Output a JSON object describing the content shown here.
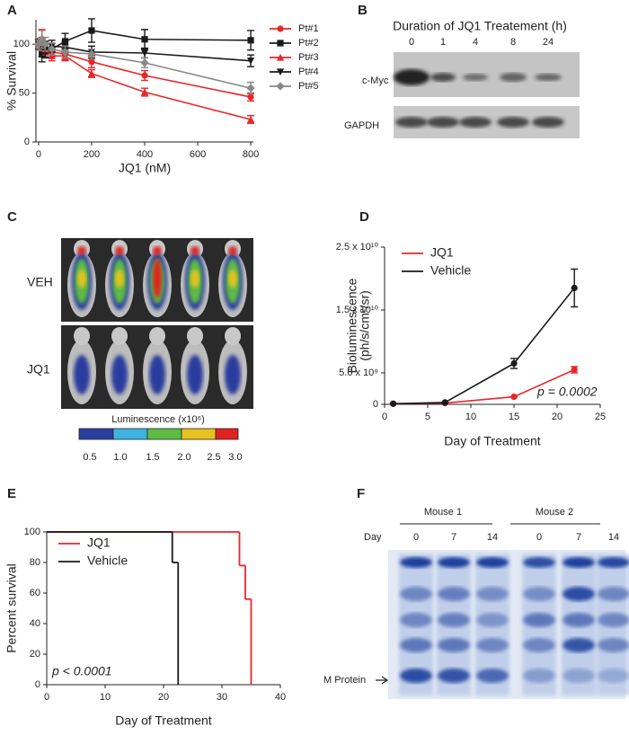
{
  "panel_labels": [
    "A",
    "B",
    "C",
    "D",
    "E",
    "F"
  ],
  "chart_data": [
    {
      "type": "line",
      "xlabel": "JQ1 (nM)",
      "ylabel": "% Survival",
      "x": [
        0,
        12.5,
        25,
        50,
        100,
        200,
        400,
        800
      ],
      "xlim": [
        -10,
        810
      ],
      "xticks": [
        0,
        200,
        400,
        600,
        800
      ],
      "ylim": [
        0,
        125
      ],
      "yticks": [
        0,
        50,
        100
      ],
      "series": [
        {
          "name": "Pt#1",
          "color": "#e8262a",
          "marker": "circle",
          "values": [
            100,
            105,
            97,
            92,
            90,
            82,
            68,
            46
          ],
          "errors": [
            5,
            10,
            6,
            5,
            6,
            6,
            5,
            4
          ]
        },
        {
          "name": "Pt#2",
          "color": "#1a1a1a",
          "marker": "square",
          "values": [
            100,
            90,
            93,
            95,
            103,
            114,
            105,
            104
          ],
          "errors": [
            6,
            8,
            7,
            6,
            8,
            12,
            10,
            10
          ]
        },
        {
          "name": "Pt#3",
          "color": "#e8262a",
          "marker": "triangle",
          "values": [
            100,
            100,
            95,
            88,
            88,
            70,
            51,
            23
          ],
          "errors": [
            5,
            7,
            6,
            5,
            5,
            4,
            4,
            4
          ]
        },
        {
          "name": "Pt#4",
          "color": "#1a1a1a",
          "marker": "down-triangle",
          "values": [
            100,
            95,
            95,
            98,
            97,
            92,
            91,
            83
          ],
          "errors": [
            5,
            8,
            8,
            6,
            6,
            6,
            5,
            6
          ]
        },
        {
          "name": "Pt#5",
          "color": "#888888",
          "marker": "diamond",
          "values": [
            100,
            105,
            100,
            95,
            92,
            90,
            81,
            55
          ],
          "errors": [
            6,
            9,
            7,
            6,
            6,
            5,
            5,
            6
          ]
        }
      ]
    },
    {
      "type": "line",
      "xlabel": "Day of Treatment",
      "ylabel": [
        "Bioluminescence",
        "(ph/s/cm²/sr)"
      ],
      "annotation": "p = 0.0002",
      "x": [
        1,
        7,
        15,
        22
      ],
      "xlim": [
        0,
        25
      ],
      "xticks": [
        0,
        5,
        10,
        15,
        20,
        25
      ],
      "ylim": [
        0,
        25000000000
      ],
      "yticks": [
        0,
        {
          "value": 5000000000,
          "label": "5.0 x 10⁹"
        },
        {
          "value": 15000000000,
          "label": "1.5 x 10¹⁰"
        },
        {
          "value": 25000000000,
          "label": "2.5 x 10¹⁰"
        }
      ],
      "series": [
        {
          "name": "JQ1",
          "color": "#e8262a",
          "marker": "circle",
          "values": [
            100000000,
            200000000,
            1200000000,
            5500000000
          ],
          "errors": [
            0,
            0,
            0,
            500000000
          ]
        },
        {
          "name": "Vehicle",
          "color": "#1a1a1a",
          "marker": "circle",
          "values": [
            100000000,
            300000000,
            6500000000,
            18500000000
          ],
          "errors": [
            0,
            0,
            800000000,
            3000000000
          ]
        }
      ]
    },
    {
      "type": "step",
      "xlabel": "Day of Treatment",
      "ylabel": "Percent survival",
      "annotation": "p < 0.0001",
      "xlim": [
        0,
        40
      ],
      "xticks": [
        0,
        10,
        20,
        30,
        40
      ],
      "ylim": [
        0,
        100
      ],
      "yticks": [
        0,
        20,
        40,
        60,
        80,
        100
      ],
      "series": [
        {
          "name": "JQ1",
          "color": "#e8262a",
          "x": [
            0,
            33,
            34,
            35
          ],
          "values": [
            100,
            78,
            56,
            0
          ]
        },
        {
          "name": "Vehicle",
          "color": "#1a1a1a",
          "x": [
            0,
            21.5,
            22.5
          ],
          "values": [
            100,
            80,
            0
          ]
        }
      ]
    }
  ],
  "blot": {
    "title": "Duration of JQ1 Treatement (h)",
    "lanes": [
      "0",
      "1",
      "4",
      "8",
      "24"
    ],
    "rows": [
      "c-Myc",
      "GAPDH"
    ]
  },
  "imaging": {
    "groups": [
      "VEH",
      "JQ1"
    ],
    "colorbar_title": "Luminescence (x10⁶)",
    "colorbar_labels": [
      "0.5",
      "1.0",
      "1.5",
      "2.0",
      "2.5",
      "3.0"
    ]
  },
  "gel": {
    "mice": [
      "Mouse 1",
      "Mouse 2"
    ],
    "day_label": "Day",
    "days": [
      "0",
      "7",
      "14",
      "0",
      "7",
      "14"
    ],
    "marker_label": "M Protein"
  }
}
